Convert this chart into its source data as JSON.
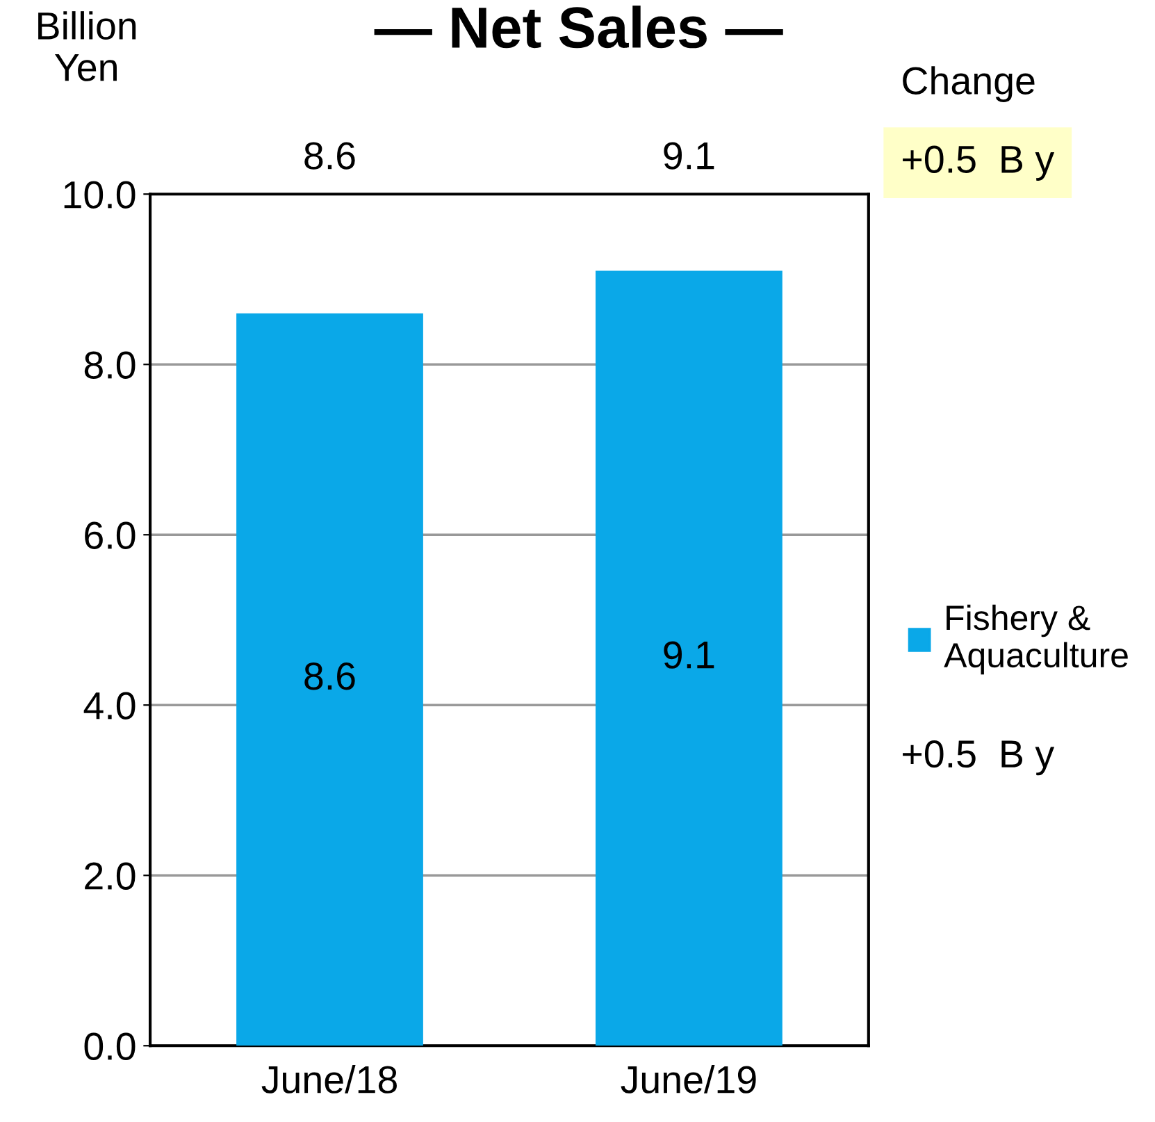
{
  "chart_data": {
    "type": "bar",
    "title": "— Net Sales —",
    "ylabel": "Billion\nYen",
    "categories": [
      "June/18",
      "June/19"
    ],
    "series": [
      {
        "name": "Fishery &\nAquaculture",
        "color": "#0aa8e8",
        "values": [
          8.6,
          9.1
        ]
      }
    ],
    "ylim": [
      0,
      10
    ],
    "yticks": [
      {
        "value": 0,
        "label": "0.0"
      },
      {
        "value": 2,
        "label": "2.0"
      },
      {
        "value": 4,
        "label": "4.0"
      },
      {
        "value": 6,
        "label": "6.0"
      },
      {
        "value": 8,
        "label": "8.0"
      },
      {
        "value": 10,
        "label": "10.0"
      }
    ],
    "grid": "y",
    "legend": "right",
    "data_labels": true,
    "annotations": [
      "Change",
      "+0.5  B y",
      "+0.5  B y",
      "8.6",
      "9.1"
    ]
  }
}
